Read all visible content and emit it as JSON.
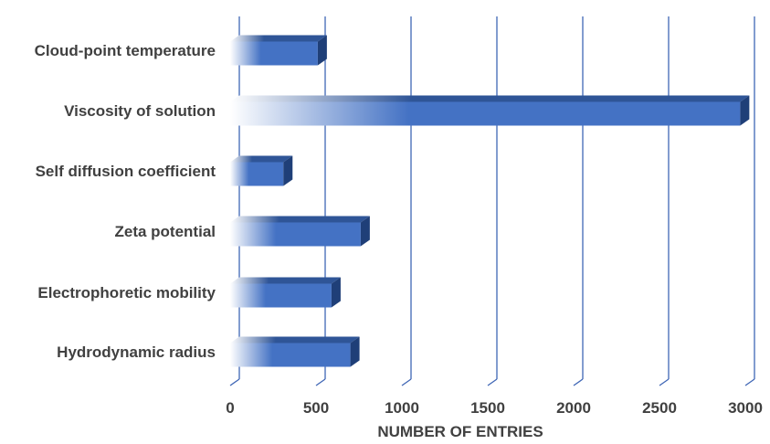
{
  "chart_data": {
    "type": "bar",
    "orientation": "horizontal",
    "categories": [
      "Cloud-point temperature",
      "Viscosity of solution",
      "Self diffusion coefficient",
      "Zeta potential",
      "Electrophoretic mobility",
      "Hydrodynamic radius"
    ],
    "values": [
      510,
      2970,
      310,
      760,
      590,
      700
    ],
    "xlabel": "NUMBER OF ENTRIES",
    "ylabel": "",
    "xlim": [
      0,
      3000
    ],
    "xticks": [
      "0",
      "500",
      "1000",
      "1500",
      "2000",
      "2500",
      "3000"
    ],
    "grid": "vertical",
    "colors": {
      "bar_front": "#4472c4",
      "bar_top": "#2f5597",
      "bar_side": "#1f3f78",
      "gridline": "#3f66b5",
      "text": "#404040"
    }
  }
}
